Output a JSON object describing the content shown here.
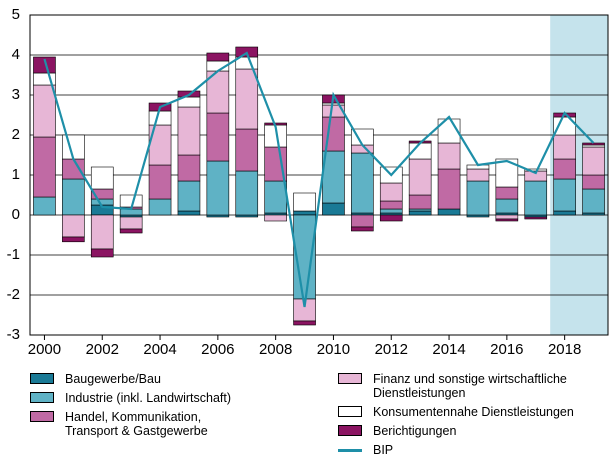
{
  "chart_data": {
    "type": "bar",
    "stacked": true,
    "x": [
      2000,
      2001,
      2002,
      2003,
      2004,
      2005,
      2006,
      2007,
      2008,
      2009,
      2010,
      2011,
      2012,
      2013,
      2014,
      2015,
      2016,
      2017,
      2018,
      2019
    ],
    "xlim": [
      1999.5,
      2019.5
    ],
    "xticks": [
      2000,
      2002,
      2004,
      2006,
      2008,
      2010,
      2012,
      2014,
      2016,
      2018
    ],
    "ylim": [
      -3,
      5
    ],
    "yticks": [
      -3,
      -2,
      -1,
      0,
      1,
      2,
      3,
      4,
      5
    ],
    "grid": true,
    "shaded_xlim": [
      2017.5,
      2019.5
    ],
    "shaded_color": "#c5e3ec",
    "series": [
      {
        "name": "Baugewerbe/Bau",
        "color": "#1a7a96",
        "values": [
          0,
          0,
          0.25,
          -0.05,
          0,
          0.1,
          -0.05,
          -0.05,
          0.05,
          0.1,
          0.3,
          0.05,
          0.05,
          0.1,
          0.15,
          -0.05,
          0.05,
          -0.05,
          0.1,
          0.05
        ]
      },
      {
        "name": "Industrie (inkl. Landwirtschaft)",
        "color": "#5fb2c5",
        "values": [
          0.45,
          0.9,
          0.15,
          0.15,
          0.4,
          0.75,
          1.35,
          1.1,
          0.8,
          -2.1,
          1.3,
          1.5,
          0.1,
          0.05,
          0,
          0.85,
          0.35,
          0.85,
          0.8,
          0.6
        ]
      },
      {
        "name": "Handel, Kommunikation, Transport & Gastgewerbe",
        "color": "#c06aa4",
        "values": [
          1.5,
          0.5,
          0.25,
          0.05,
          0.85,
          0.65,
          1.2,
          1.05,
          0.85,
          0,
          0.85,
          -0.3,
          0.2,
          0.35,
          1.0,
          0,
          0.3,
          0,
          0.5,
          0.35
        ]
      },
      {
        "name": "Finanz und sonstige wirtschaftliche Dienstleistungen",
        "color": "#e7b6d6",
        "values": [
          1.3,
          -0.55,
          -0.85,
          -0.3,
          1.0,
          1.2,
          1.05,
          1.5,
          -0.15,
          -0.55,
          0.3,
          0.2,
          0.45,
          0.9,
          0.65,
          0.3,
          -0.1,
          0.25,
          0.6,
          0.7
        ]
      },
      {
        "name": "Konsumentennahe Dienstleistungen",
        "color": "#ffffff",
        "values": [
          0.3,
          0.6,
          0.55,
          0.3,
          0.35,
          0.25,
          0.25,
          0.3,
          0.55,
          0.45,
          0.05,
          0.4,
          0.4,
          0.4,
          0.6,
          0.1,
          0.7,
          0.05,
          0.45,
          0.05
        ]
      },
      {
        "name": "Berichtigungen",
        "color": "#8b1462",
        "values": [
          0.4,
          -0.12,
          -0.2,
          -0.1,
          0.2,
          0.15,
          0.2,
          0.25,
          0.05,
          -0.1,
          0.2,
          -0.1,
          -0.15,
          0.05,
          0,
          0,
          -0.05,
          -0.05,
          0.1,
          0.05
        ]
      },
      {
        "name": "BIP",
        "type": "line",
        "color": "#1e8fa8",
        "values": [
          3.9,
          1.4,
          0.2,
          0.15,
          2.7,
          3.0,
          3.6,
          4.05,
          2.2,
          -2.3,
          3.0,
          1.75,
          1.0,
          1.8,
          2.45,
          1.25,
          1.35,
          1.05,
          2.55,
          1.8
        ]
      }
    ]
  }
}
